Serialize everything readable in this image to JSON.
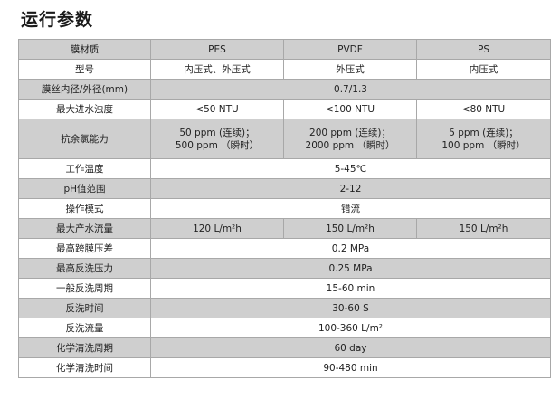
{
  "title": "运行参数",
  "header": {
    "label": "膜材质",
    "cols": [
      "PES",
      "PVDF",
      "PS"
    ]
  },
  "rows": [
    {
      "label": "型号",
      "values": [
        "内压式、外压式",
        "外压式",
        "内压式"
      ]
    },
    {
      "label": "膜丝内径/外径(mm)",
      "span": "0.7/1.3"
    },
    {
      "label": "最大进水浊度",
      "values": [
        "<50 NTU",
        "<100 NTU",
        "<80 NTU"
      ]
    },
    {
      "label": "抗余氯能力",
      "values": [
        [
          "50 ppm (连续)；",
          "500 ppm （瞬时）"
        ],
        [
          "200 ppm (连续)；",
          "2000 ppm （瞬时）"
        ],
        [
          "5 ppm (连续)；",
          "100 ppm （瞬时）"
        ]
      ]
    },
    {
      "label": "工作温度",
      "span": "5-45℃"
    },
    {
      "label": "pH值范围",
      "span": "2-12"
    },
    {
      "label": "操作模式",
      "span": "错流"
    },
    {
      "label": "最大产水流量",
      "values": [
        "120 L/m²h",
        "150 L/m²h",
        "150 L/m²h"
      ]
    },
    {
      "label": "最高跨膜压差",
      "span": "0.2 MPa"
    },
    {
      "label": "最高反洗压力",
      "span": "0.25 MPa"
    },
    {
      "label": "一般反洗周期",
      "span": "15-60 min"
    },
    {
      "label": "反洗时间",
      "span": "30-60 S"
    },
    {
      "label": "反洗流量",
      "span": "100-360 L/m²"
    },
    {
      "label": "化学清洗周期",
      "span": "60 day"
    },
    {
      "label": "化学清洗时间",
      "span": "90-480 min"
    }
  ]
}
